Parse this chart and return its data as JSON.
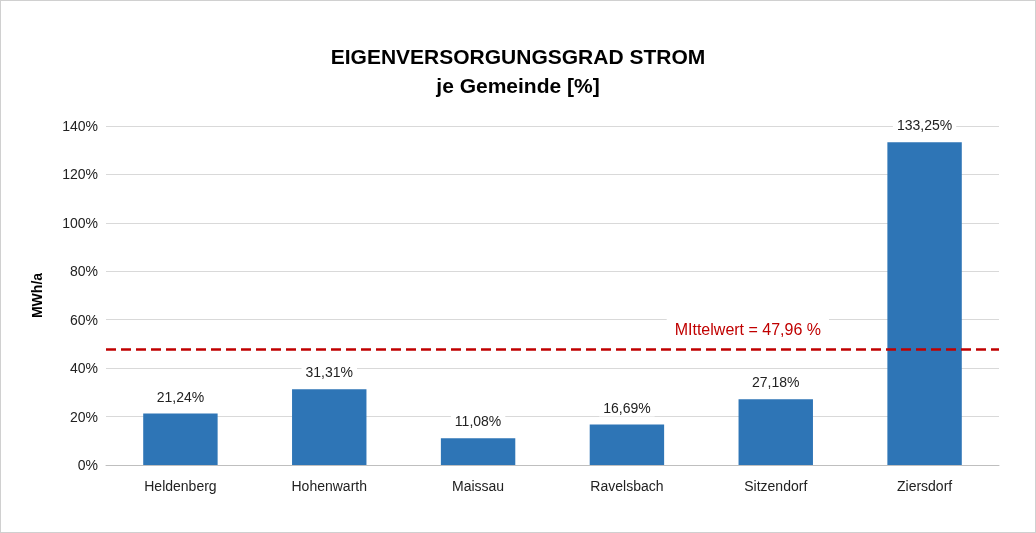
{
  "chart_data": {
    "type": "bar",
    "title": "EIGENVERSORGUNGSGRAD STROM",
    "subtitle": "je Gemeinde [%]",
    "ylabel": "MWh/a",
    "categories": [
      "Heldenberg",
      "Hohenwarth",
      "Maissau",
      "Ravelsbach",
      "Sitzendorf",
      "Ziersdorf"
    ],
    "values": [
      21.24,
      31.31,
      11.08,
      16.69,
      27.18,
      133.25
    ],
    "value_labels": [
      "21,24%",
      "31,31%",
      "11,08%",
      "16,69%",
      "27,18%",
      "133,25%"
    ],
    "color": "#2e75b6",
    "ylim": [
      0,
      140
    ],
    "yticks": [
      {
        "value": 0,
        "label": "0%"
      },
      {
        "value": 20,
        "label": "20%"
      },
      {
        "value": 40,
        "label": "40%"
      },
      {
        "value": 60,
        "label": "60%"
      },
      {
        "value": 80,
        "label": "80%"
      },
      {
        "value": 100,
        "label": "100%"
      },
      {
        "value": 120,
        "label": "120%"
      },
      {
        "value": 140,
        "label": "140%"
      }
    ],
    "grid": "y",
    "ref_lines": [
      {
        "axis": "y",
        "value": 47.96,
        "label": "MIttelwert = 47,96 %",
        "color": "#c00000",
        "line_style": "dashed"
      }
    ]
  }
}
